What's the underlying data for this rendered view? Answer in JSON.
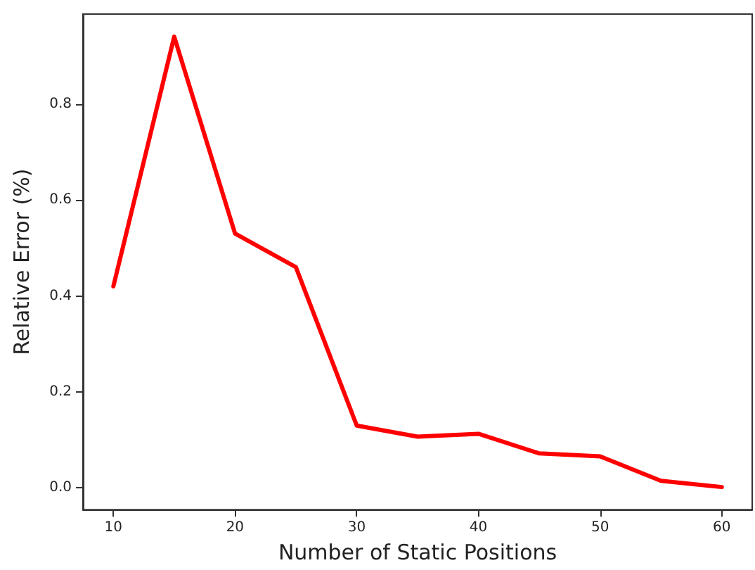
{
  "chart_data": {
    "type": "line",
    "xlabel": "Number of Static Positions",
    "ylabel": "Relative Error (%)",
    "x": [
      10,
      15,
      20,
      25,
      30,
      35,
      40,
      45,
      50,
      55,
      60
    ],
    "series": [
      {
        "color": "#ff0000",
        "values": [
          0.42,
          0.94,
          0.53,
          0.46,
          0.13,
          0.107,
          0.113,
          0.072,
          0.066,
          0.015,
          0.002
        ]
      }
    ],
    "xlim": [
      7.5,
      62.5
    ],
    "xticks": [
      10,
      20,
      30,
      40,
      50,
      60
    ],
    "ylim": [
      -0.045,
      0.987
    ],
    "yticks": [
      {
        "value": 0,
        "label": "0.0"
      },
      {
        "value": 0.2,
        "label": "0.2"
      },
      {
        "value": 0.4,
        "label": "0.4"
      },
      {
        "value": 0.6,
        "label": "0.6"
      },
      {
        "value": 0.8,
        "label": "0.8"
      }
    ],
    "marker": "none",
    "line_style": "solid"
  }
}
